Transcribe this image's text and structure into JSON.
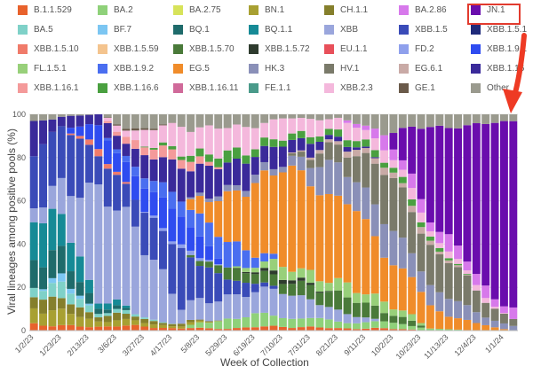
{
  "chart_data": {
    "type": "bar",
    "stacked": true,
    "xlabel": "Week of Collection",
    "ylabel": "Viral lineages among positive pools (%)",
    "ylim": [
      0,
      100
    ],
    "yticks": [
      0,
      20,
      40,
      60,
      80,
      100
    ],
    "x_tick_labels": [
      "1/2/23",
      "1/23/23",
      "2/13/23",
      "3/6/23",
      "3/27/23",
      "4/17/23",
      "5/8/23",
      "5/29/23",
      "6/19/23",
      "7/10/23",
      "7/31/23",
      "8/21/23",
      "9/11/23",
      "10/2/23",
      "10/23/23",
      "11/13/23",
      "12/4/23",
      "1/1/24"
    ],
    "n_weeks": 53,
    "legend_highlight": "JN.1",
    "legend": [
      {
        "name": "B.1.1.529",
        "color": "#e8622c"
      },
      {
        "name": "BA.2",
        "color": "#8fd17a"
      },
      {
        "name": "BA.2.75",
        "color": "#d7e35a"
      },
      {
        "name": "BN.1",
        "color": "#a8a032"
      },
      {
        "name": "CH.1.1",
        "color": "#857f2c"
      },
      {
        "name": "BA.2.86",
        "color": "#d779eb"
      },
      {
        "name": "JN.1",
        "color": "#6a0dad"
      },
      {
        "name": "BA.5",
        "color": "#7fd1c8"
      },
      {
        "name": "BF.7",
        "color": "#7cc6f2"
      },
      {
        "name": "BQ.1",
        "color": "#1f6b6b"
      },
      {
        "name": "BQ.1.1",
        "color": "#168a96"
      },
      {
        "name": "XBB",
        "color": "#9aa6dc"
      },
      {
        "name": "XBB.1.5",
        "color": "#3a4bb8"
      },
      {
        "name": "XBB.1.5.1",
        "color": "#1f2a7a"
      },
      {
        "name": "XBB.1.5.10",
        "color": "#f07b6a"
      },
      {
        "name": "XBB.1.5.59",
        "color": "#f4c48e"
      },
      {
        "name": "XBB.1.5.70",
        "color": "#4a7a3a"
      },
      {
        "name": "XBB.1.5.72",
        "color": "#2e3b2e"
      },
      {
        "name": "EU.1.1",
        "color": "#e8505a"
      },
      {
        "name": "FD.2",
        "color": "#8fa0ec"
      },
      {
        "name": "XBB.1.9.1",
        "color": "#2f4cf0"
      },
      {
        "name": "FL.1.5.1",
        "color": "#98d07a"
      },
      {
        "name": "XBB.1.9.2",
        "color": "#4a6ef0"
      },
      {
        "name": "EG.5",
        "color": "#f08c2a"
      },
      {
        "name": "HK.3",
        "color": "#8a90b8"
      },
      {
        "name": "HV.1",
        "color": "#7a7a6a"
      },
      {
        "name": "EG.6.1",
        "color": "#c9aaa6"
      },
      {
        "name": "XBB.1.16",
        "color": "#3a2a9a"
      },
      {
        "name": "XBB.1.16.1",
        "color": "#f49a9a"
      },
      {
        "name": "XBB.1.16.6",
        "color": "#4aa040"
      },
      {
        "name": "XBB.1.16.11",
        "color": "#d06a9a"
      },
      {
        "name": "FE.1.1",
        "color": "#4a9a8a"
      },
      {
        "name": "XBB.2.3",
        "color": "#f4b8dc"
      },
      {
        "name": "GE.1",
        "color": "#6a5a4a"
      },
      {
        "name": "Other",
        "color": "#9a9a8e"
      }
    ],
    "series_order": [
      "B.1.1.529",
      "BA.2",
      "BA.2.75",
      "BN.1",
      "CH.1.1",
      "BA.5",
      "BF.7",
      "BQ.1",
      "BQ.1.1",
      "XBB",
      "XBB.1.5",
      "XBB.1.5.1",
      "XBB.1.5.10",
      "XBB.1.5.59",
      "XBB.1.5.70",
      "XBB.1.5.72",
      "EU.1.1",
      "FD.2",
      "XBB.1.9.1",
      "FL.1.5.1",
      "XBB.1.9.2",
      "EG.5",
      "HK.3",
      "HV.1",
      "EG.6.1",
      "XBB.1.16",
      "XBB.1.16.1",
      "XBB.1.16.6",
      "XBB.1.16.11",
      "FE.1.1",
      "XBB.2.3",
      "GE.1",
      "BA.2.86",
      "JN.1",
      "Other"
    ],
    "key_weeks": [
      {
        "week": 0,
        "v": {
          "B.1.1.529": 3,
          "BN.1": 8,
          "CH.1.1": 6,
          "BA.5": 5,
          "BQ.1": 15,
          "BQ.1.1": 22,
          "XBB": 5,
          "XBB.1.5": 20,
          "XBB.1.16": 12,
          "Other": 4
        }
      },
      {
        "week": 3,
        "v": {
          "B.1.1.529": 2,
          "BN.1": 6,
          "CH.1.1": 5,
          "BA.5": 6,
          "BF.7": 3,
          "BQ.1": 10,
          "BQ.1.1": 15,
          "XBB": 15,
          "XBB.1.5": 32,
          "XBB.1.16": 5,
          "Other": 1
        }
      },
      {
        "week": 7,
        "v": {
          "B.1.1.529": 2,
          "BN.1": 3,
          "CH.1.1": 3,
          "BA.5": 2,
          "BQ.1": 3,
          "BQ.1.1": 4,
          "XBB": 50,
          "XBB.1.5": 15,
          "XBB.1.9.1": 10,
          "XBB.1.5.10": 3,
          "XBB.1.16": 5
        }
      },
      {
        "week": 11,
        "v": {
          "B.1.1.529": 2,
          "BN.1": 2,
          "CH.1.1": 2,
          "BA.5": 1,
          "XBB": 40,
          "XBB.1.5": 14,
          "XBB.1.9.1": 10,
          "XBB.1.9.2": 4,
          "XBB.1.16": 8,
          "XBB.1.16.1": 4,
          "XBB.2.3": 5,
          "GE.1": 1,
          "Other": 7
        }
      },
      {
        "week": 16,
        "v": {
          "B.1.1.529": 1,
          "BN.1": 1,
          "CH.1.1": 1,
          "XBB": 8,
          "XBB.1.5": 25,
          "XBB.1.9.1": 15,
          "XBB.1.9.2": 8,
          "FD.2": 2,
          "XBB.1.16": 15,
          "XBB.1.16.1": 5,
          "XBB.1.16.6": 2,
          "XBB.2.3": 12,
          "Other": 5
        }
      },
      {
        "week": 21,
        "v": {
          "B.1.1.529": 1,
          "BA.2": 5,
          "XBB": 10,
          "XBB.1.5": 8,
          "XBB.1.5.70": 5,
          "EG.5": 20,
          "XBB.1.9.2": 12,
          "HK.3": 3,
          "XBB.1.16": 12,
          "XBB.1.16.6": 5,
          "XBB.2.3": 12,
          "Other": 7
        }
      },
      {
        "week": 27,
        "v": {
          "B.1.1.529": 2,
          "BA.2": 5,
          "FL.1.5.1": 5,
          "XBB.1.5.70": 5,
          "XBB.1.5.72": 2,
          "XBB": 12,
          "EG.5": 45,
          "HK.3": 3,
          "XBB.1.16": 8,
          "XBB.1.16.6": 3,
          "XBB.2.3": 8,
          "Other": 2
        }
      },
      {
        "week": 33,
        "v": {
          "B.1.1.529": 1,
          "BA.2": 3,
          "XBB.1.5.70": 8,
          "FL.1.5.1": 5,
          "XBB": 5,
          "EG.5": 40,
          "HK.3": 15,
          "HV.1": 8,
          "XBB.1.16": 2,
          "XBB.1.16.6": 3,
          "XBB.2.3": 6,
          "EG.6.1": 2,
          "Other": 2
        }
      },
      {
        "week": 38,
        "v": {
          "B.1.1.529": 1,
          "BA.2": 3,
          "XBB.1.5.70": 5,
          "FL.1.5.1": 5,
          "BA.2.86": 5,
          "EG.5": 25,
          "HK.3": 15,
          "HV.1": 22,
          "XBB.1.16.6": 3,
          "XBB.2.3": 5,
          "EG.6.1": 3,
          "Other": 8
        }
      },
      {
        "week": 43,
        "v": {
          "BA.2": 1,
          "BA.2.86": 6,
          "JN.1": 40,
          "EG.5": 10,
          "HK.3": 10,
          "HV.1": 20,
          "XBB.1.16.6": 2,
          "XBB.2.3": 3,
          "EG.6.1": 2,
          "Other": 6
        }
      },
      {
        "week": 48,
        "v": {
          "BA.2.86": 5,
          "JN.1": 70,
          "EG.5": 3,
          "HK.3": 5,
          "HV.1": 10,
          "XBB.2.3": 2,
          "Other": 5
        }
      },
      {
        "week": 52,
        "v": {
          "BA.2.86": 4,
          "JN.1": 88,
          "HK.3": 2,
          "HV.1": 3,
          "Other": 3
        }
      }
    ]
  }
}
